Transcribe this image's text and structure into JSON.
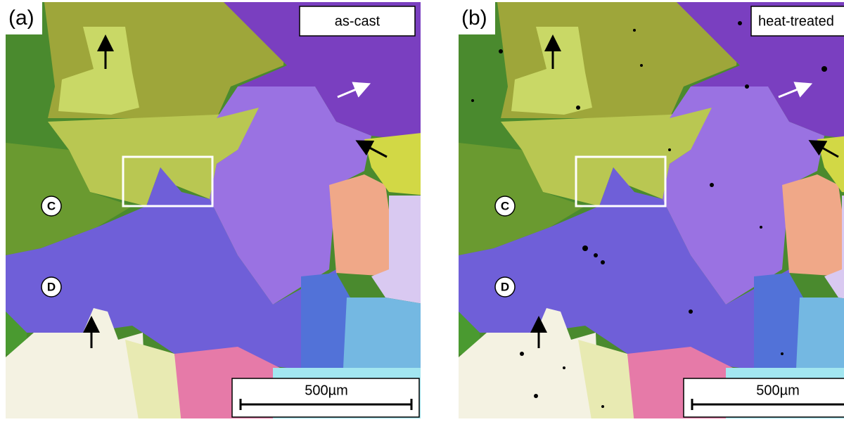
{
  "panels": [
    {
      "label": "(a)",
      "condition": "as-cast",
      "markers": [
        "C",
        "D"
      ],
      "scale_bar": "500µm"
    },
    {
      "label": "(b)",
      "condition": "heat-treated",
      "markers": [
        "C",
        "D"
      ],
      "scale_bar": "500µm"
    }
  ]
}
